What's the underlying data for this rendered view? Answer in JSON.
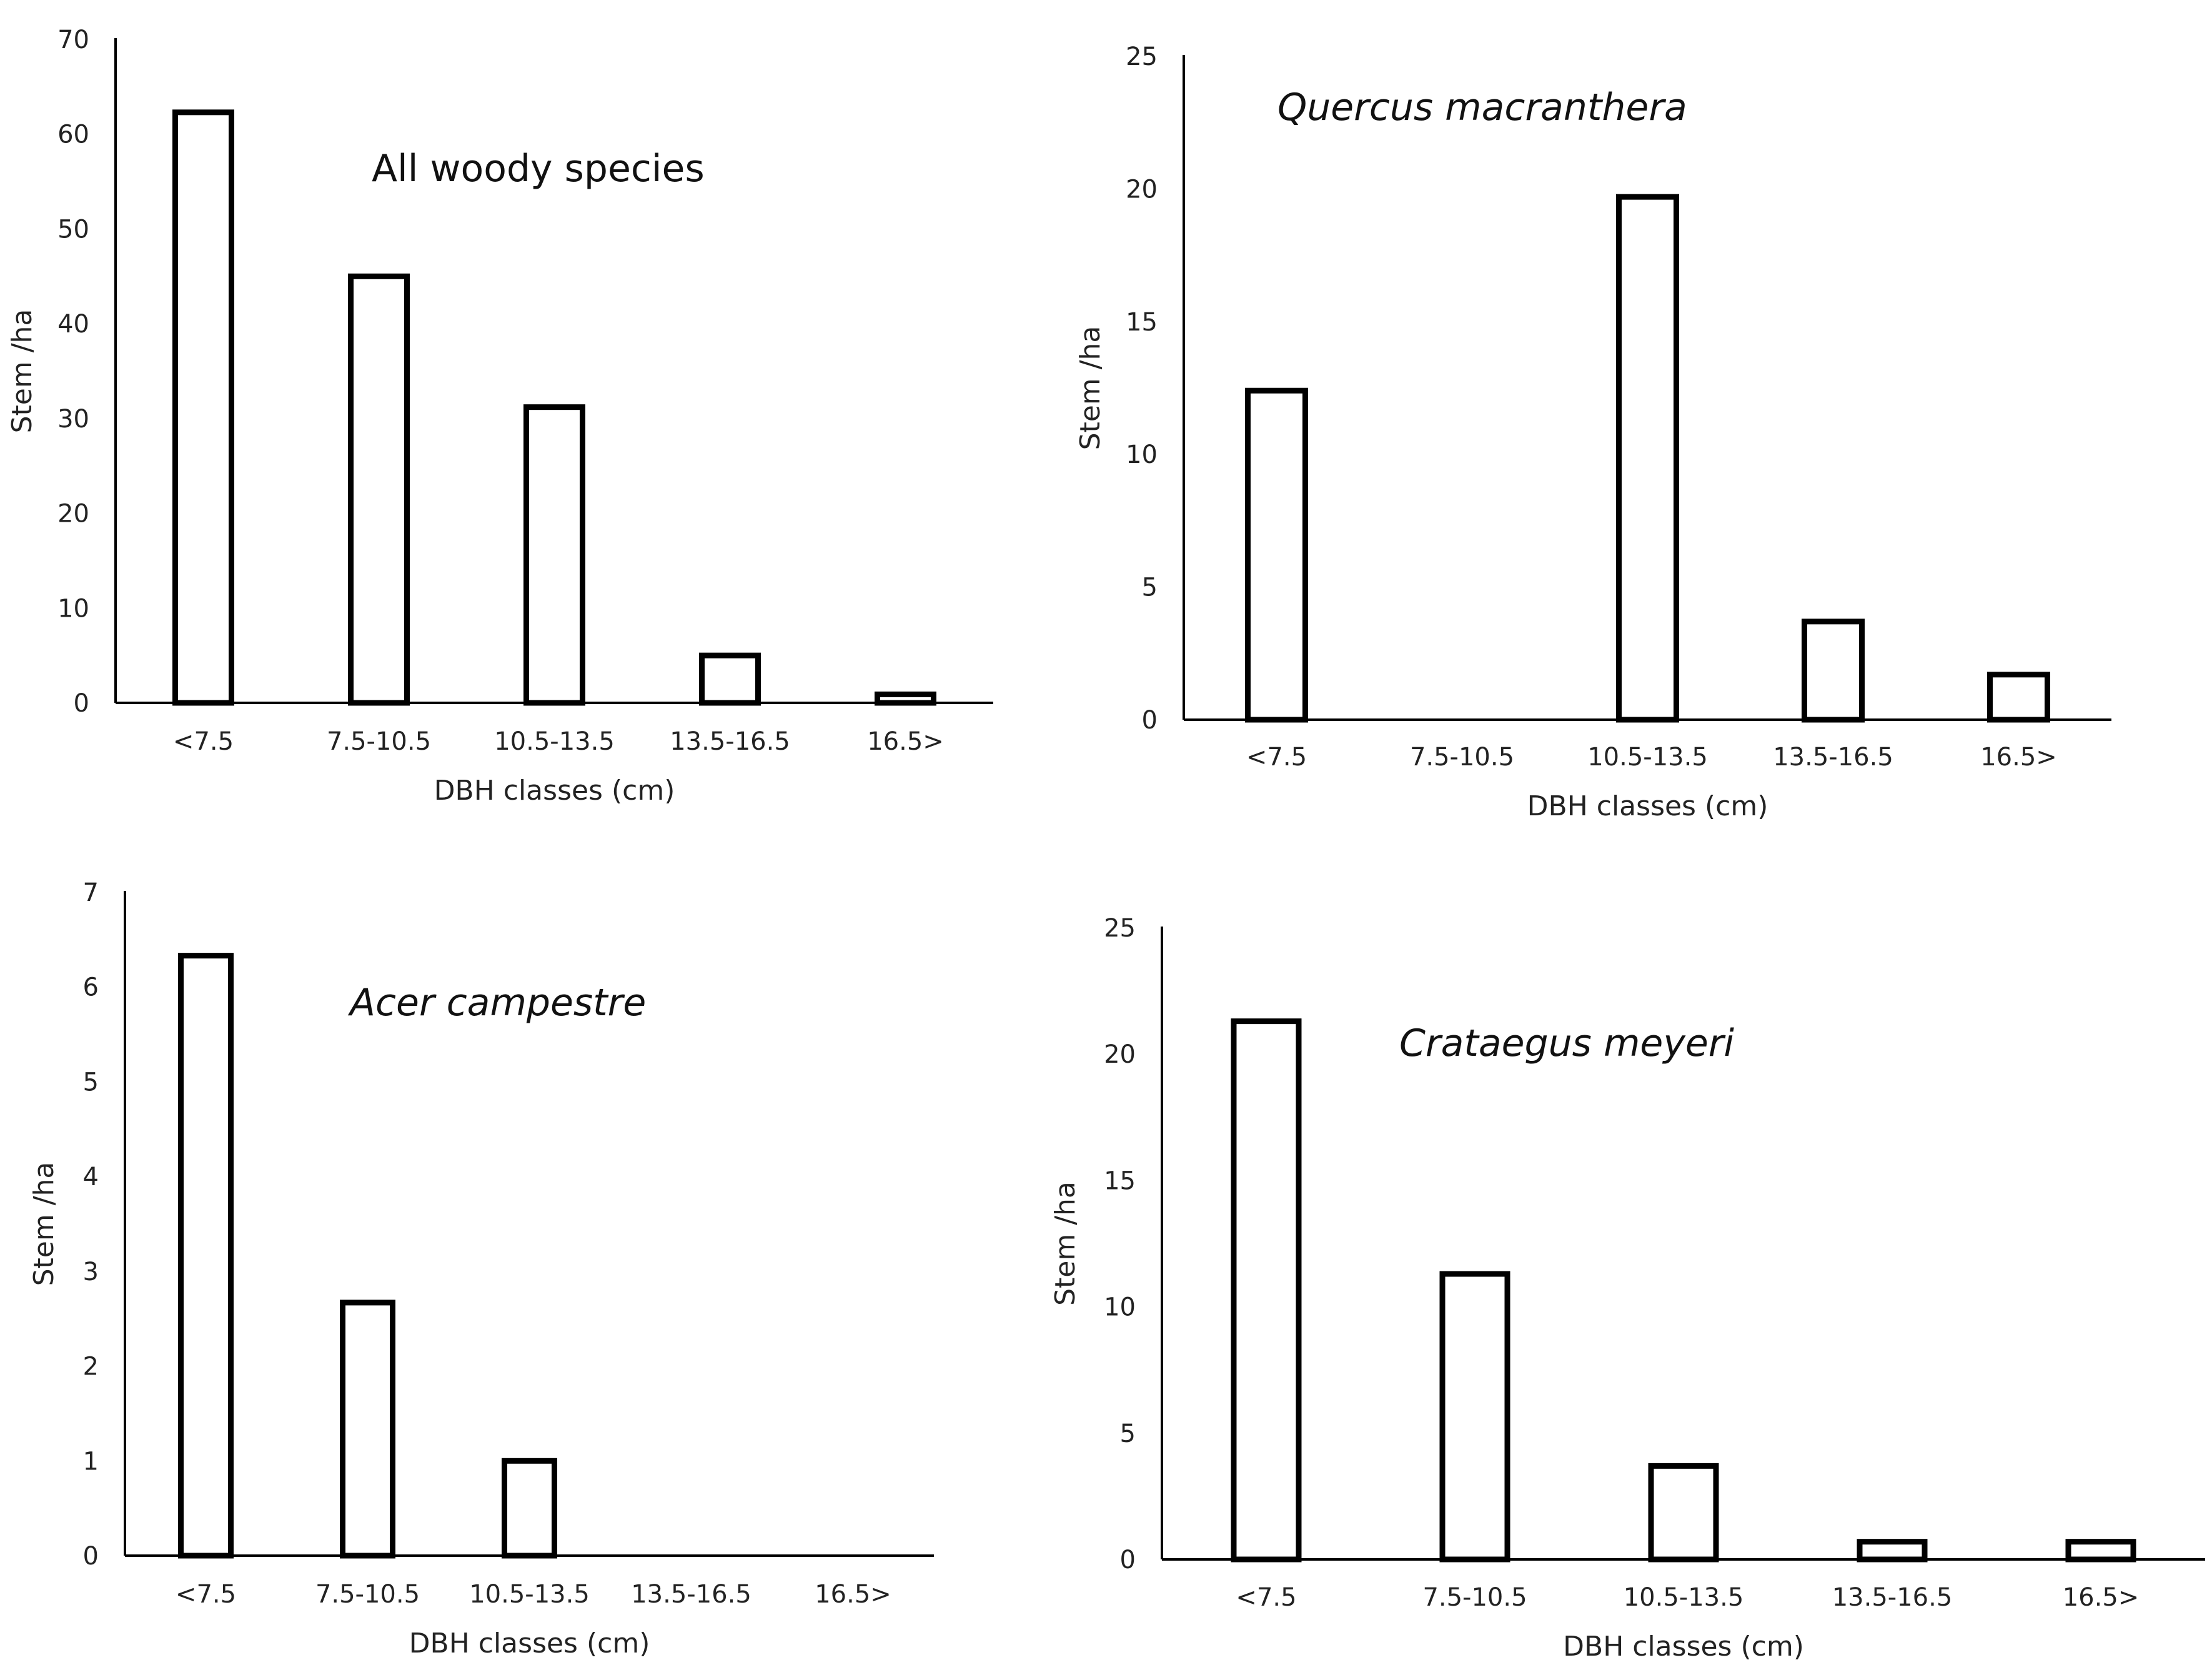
{
  "chart_data": [
    {
      "type": "bar",
      "title": "All woody species",
      "title_style": "normal",
      "categories": [
        "<7.5",
        "7.5-10.5",
        "10.5-13.5",
        "13.5-16.5",
        "16.5>"
      ],
      "values": [
        62.3,
        45.0,
        31.2,
        5.0,
        0.9
      ],
      "xlabel": "DBH classes (cm)",
      "ylabel": "Stem /ha",
      "ylim": [
        0,
        70
      ],
      "yticks": [
        0,
        10,
        20,
        30,
        40,
        50,
        60,
        70
      ],
      "grid": false,
      "legend": "none"
    },
    {
      "type": "bar",
      "title": "Quercus macranthera",
      "title_style": "italic",
      "categories": [
        "<7.5",
        "7.5-10.5",
        "10.5-13.5",
        "13.5-16.5",
        "16.5>"
      ],
      "values": [
        12.4,
        0,
        19.7,
        3.7,
        1.7
      ],
      "xlabel": "DBH classes (cm)",
      "ylabel": "Stem /ha",
      "ylim": [
        0,
        25
      ],
      "yticks": [
        0,
        5,
        10,
        15,
        20,
        25
      ],
      "grid": false,
      "legend": "none"
    },
    {
      "type": "bar",
      "title": "Acer campestre",
      "title_style": "italic",
      "categories": [
        "<7.5",
        "7.5-10.5",
        "10.5-13.5",
        "13.5-16.5",
        "16.5>"
      ],
      "values": [
        6.33,
        2.67,
        1.0,
        0,
        0
      ],
      "xlabel": "DBH classes (cm)",
      "ylabel": "Stem /ha",
      "ylim": [
        0,
        7
      ],
      "yticks": [
        0,
        1,
        2,
        3,
        4,
        5,
        6,
        7
      ],
      "grid": false,
      "legend": "none"
    },
    {
      "type": "bar",
      "title": "Crataegus meyeri",
      "title_style": "italic",
      "categories": [
        "<7.5",
        "7.5-10.5",
        "10.5-13.5",
        "13.5-16.5",
        "16.5>"
      ],
      "values": [
        21.3,
        11.3,
        3.7,
        0.7,
        0.7
      ],
      "xlabel": "DBH classes (cm)",
      "ylabel": "Stem /ha",
      "ylim": [
        0,
        25
      ],
      "yticks": [
        0,
        5,
        10,
        15,
        20,
        25
      ],
      "grid": false,
      "legend": "none"
    }
  ]
}
